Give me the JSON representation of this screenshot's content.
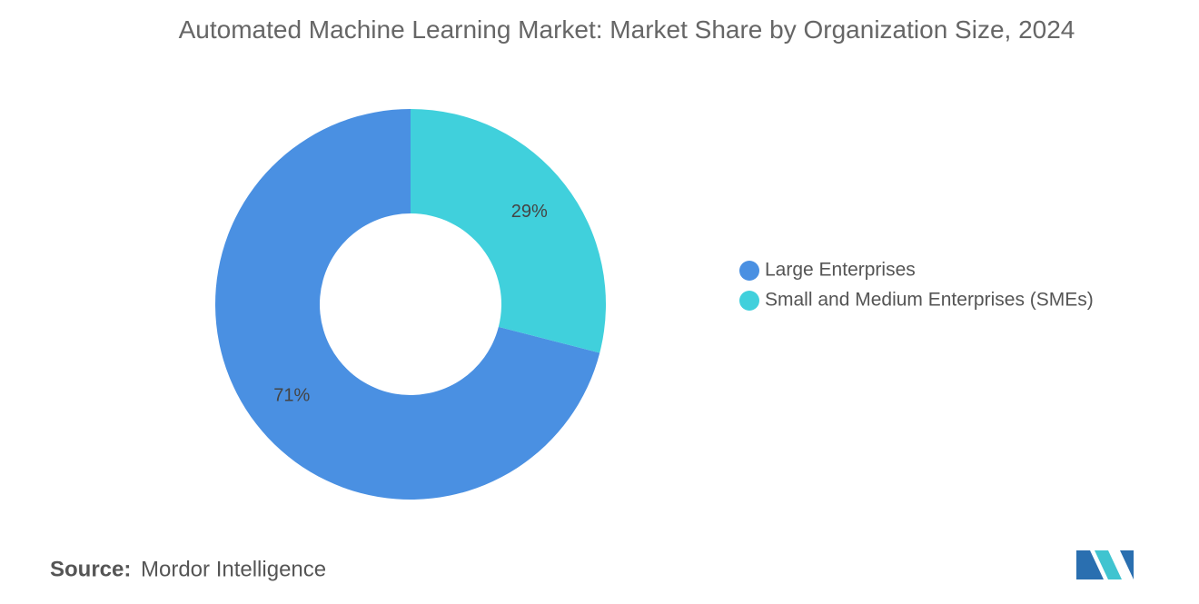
{
  "chart_data": {
    "type": "donut",
    "title": "Automated Machine Learning Market: Market Share by Organization Size, 2024",
    "categories": [
      "Large Enterprises",
      "Small and Medium Enterprises (SMEs)"
    ],
    "values": [
      71,
      29
    ],
    "value_labels": [
      "71%",
      "29%"
    ],
    "colors": [
      "#4a90e2",
      "#40d0dc"
    ],
    "legend": "right"
  },
  "source": {
    "label": "Source:",
    "text": "Mordor Intelligence"
  }
}
